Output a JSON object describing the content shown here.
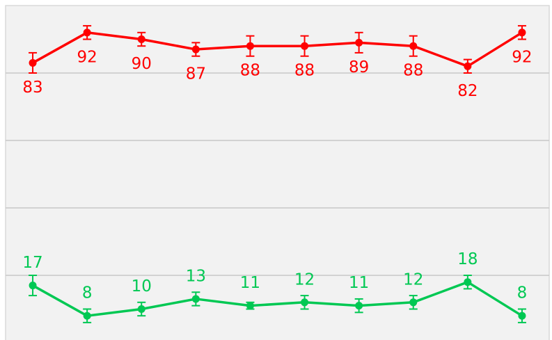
{
  "chart_data": {
    "type": "line",
    "categories": [
      null,
      null,
      null,
      null,
      null,
      null,
      null,
      null,
      null,
      null
    ],
    "series": [
      {
        "color": "#ff0000",
        "label_position": "below",
        "values": [
          83,
          92,
          90,
          87,
          88,
          88,
          89,
          88,
          82,
          92
        ],
        "errors": [
          3,
          2,
          2,
          2,
          3,
          3,
          3,
          3,
          2,
          2
        ]
      },
      {
        "color": "#00c853",
        "label_position": "above",
        "values": [
          17,
          8,
          10,
          13,
          11,
          12,
          11,
          12,
          18,
          8
        ],
        "errors": [
          3,
          2,
          2,
          2,
          1,
          2,
          2,
          2,
          2,
          2
        ]
      }
    ],
    "ylim": [
      0,
      100
    ],
    "yticks": [
      20,
      40,
      60,
      80
    ],
    "grid": true
  }
}
